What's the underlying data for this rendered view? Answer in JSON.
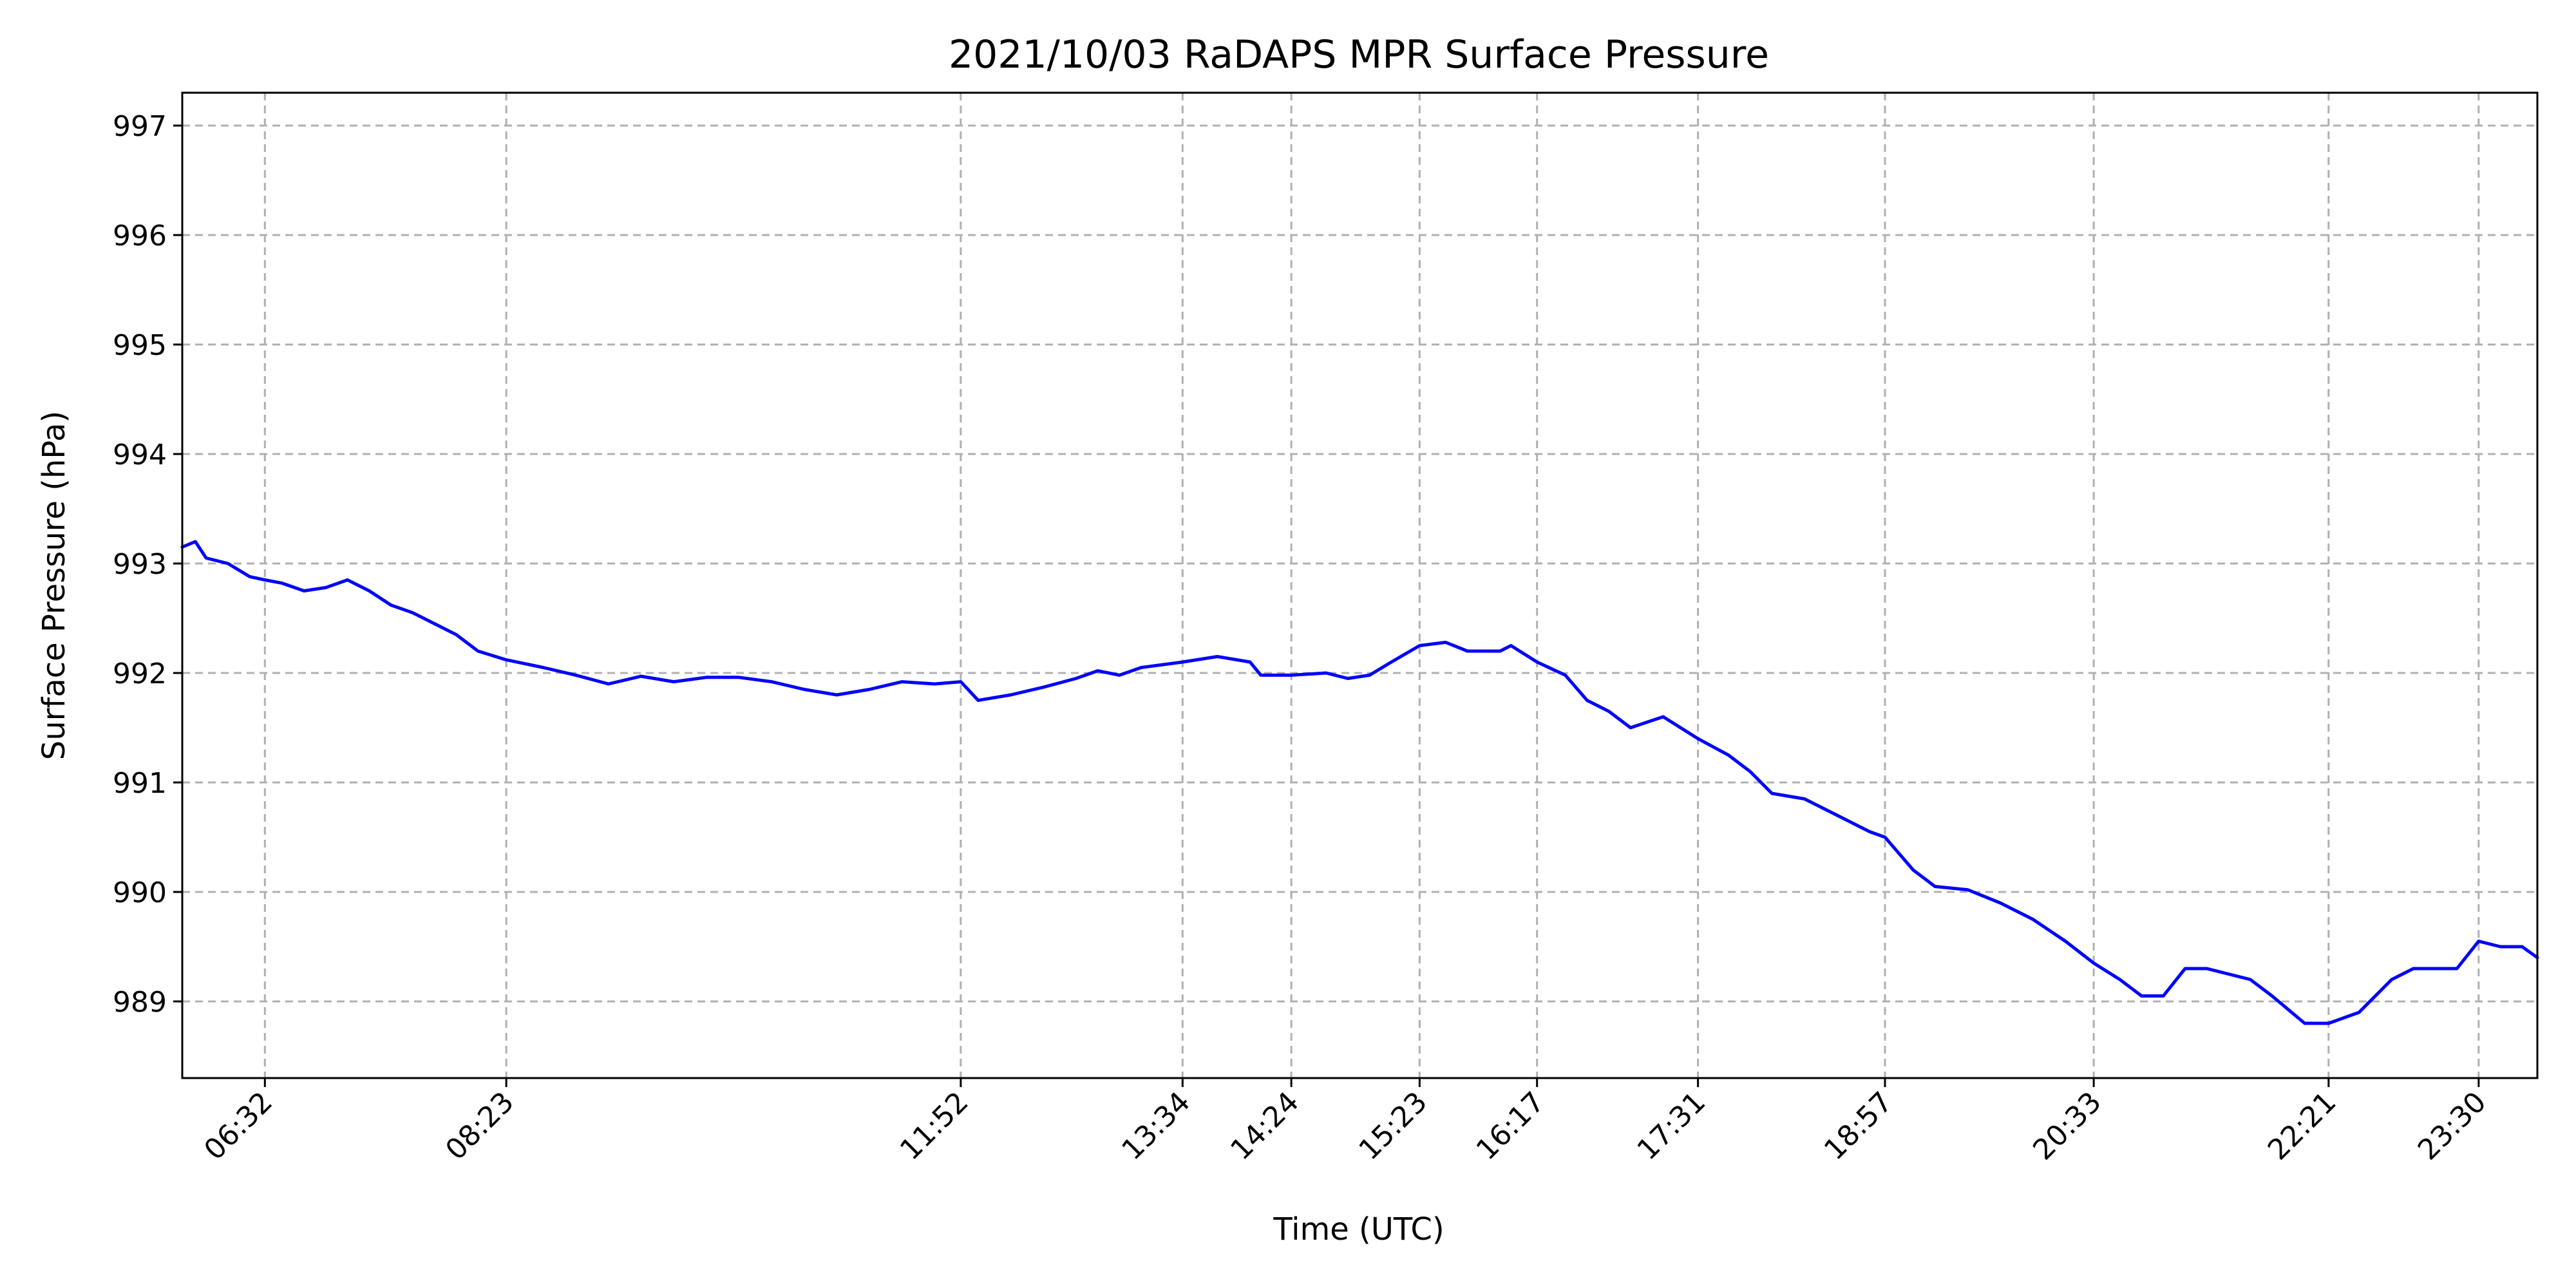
{
  "chart_data": {
    "type": "line",
    "title": "2021/10/03 RaDAPS MPR Surface Pressure",
    "xlabel": "Time (UTC)",
    "ylabel": "Surface Pressure (hPa)",
    "x_unit": "HH:MM UTC",
    "xlim": [
      "05:54",
      "23:57"
    ],
    "ylim": [
      988.3,
      997.3
    ],
    "x_ticks": [
      "06:32",
      "08:23",
      "11:52",
      "13:34",
      "14:24",
      "15:23",
      "16:17",
      "17:31",
      "18:57",
      "20:33",
      "22:21",
      "23:30"
    ],
    "y_ticks": [
      989,
      990,
      991,
      992,
      993,
      994,
      995,
      996,
      997
    ],
    "grid": true,
    "series": [
      {
        "color": "#0000ff",
        "points": [
          [
            "05:54",
            993.15
          ],
          [
            "06:00",
            993.2
          ],
          [
            "06:05",
            993.05
          ],
          [
            "06:15",
            993.0
          ],
          [
            "06:25",
            992.88
          ],
          [
            "06:32",
            992.85
          ],
          [
            "06:40",
            992.82
          ],
          [
            "06:50",
            992.75
          ],
          [
            "07:00",
            992.78
          ],
          [
            "07:10",
            992.85
          ],
          [
            "07:20",
            992.75
          ],
          [
            "07:30",
            992.62
          ],
          [
            "07:40",
            992.55
          ],
          [
            "07:50",
            992.45
          ],
          [
            "08:00",
            992.35
          ],
          [
            "08:10",
            992.2
          ],
          [
            "08:23",
            992.12
          ],
          [
            "08:40",
            992.05
          ],
          [
            "08:55",
            991.98
          ],
          [
            "09:10",
            991.9
          ],
          [
            "09:25",
            991.97
          ],
          [
            "09:40",
            991.92
          ],
          [
            "09:55",
            991.96
          ],
          [
            "10:10",
            991.96
          ],
          [
            "10:25",
            991.92
          ],
          [
            "10:40",
            991.85
          ],
          [
            "10:55",
            991.8
          ],
          [
            "11:10",
            991.85
          ],
          [
            "11:25",
            991.92
          ],
          [
            "11:40",
            991.9
          ],
          [
            "11:52",
            991.92
          ],
          [
            "12:00",
            991.75
          ],
          [
            "12:15",
            991.8
          ],
          [
            "12:30",
            991.87
          ],
          [
            "12:45",
            991.95
          ],
          [
            "12:55",
            992.02
          ],
          [
            "13:05",
            991.98
          ],
          [
            "13:15",
            992.05
          ],
          [
            "13:34",
            992.1
          ],
          [
            "13:50",
            992.15
          ],
          [
            "14:05",
            992.1
          ],
          [
            "14:10",
            991.98
          ],
          [
            "14:24",
            991.98
          ],
          [
            "14:40",
            992.0
          ],
          [
            "14:50",
            991.95
          ],
          [
            "15:00",
            991.98
          ],
          [
            "15:10",
            992.1
          ],
          [
            "15:23",
            992.25
          ],
          [
            "15:35",
            992.28
          ],
          [
            "15:45",
            992.2
          ],
          [
            "16:00",
            992.2
          ],
          [
            "16:05",
            992.25
          ],
          [
            "16:17",
            992.1
          ],
          [
            "16:30",
            991.98
          ],
          [
            "16:40",
            991.75
          ],
          [
            "16:50",
            991.65
          ],
          [
            "17:00",
            991.5
          ],
          [
            "17:15",
            991.6
          ],
          [
            "17:31",
            991.4
          ],
          [
            "17:45",
            991.25
          ],
          [
            "17:55",
            991.1
          ],
          [
            "18:05",
            990.9
          ],
          [
            "18:20",
            990.85
          ],
          [
            "18:35",
            990.7
          ],
          [
            "18:50",
            990.55
          ],
          [
            "18:57",
            990.5
          ],
          [
            "19:10",
            990.2
          ],
          [
            "19:20",
            990.05
          ],
          [
            "19:35",
            990.02
          ],
          [
            "19:50",
            989.9
          ],
          [
            "20:05",
            989.75
          ],
          [
            "20:20",
            989.55
          ],
          [
            "20:33",
            989.35
          ],
          [
            "20:45",
            989.2
          ],
          [
            "20:55",
            989.05
          ],
          [
            "21:05",
            989.05
          ],
          [
            "21:15",
            989.3
          ],
          [
            "21:25",
            989.3
          ],
          [
            "21:35",
            989.25
          ],
          [
            "21:45",
            989.2
          ],
          [
            "21:55",
            989.05
          ],
          [
            "22:10",
            988.8
          ],
          [
            "22:21",
            988.8
          ],
          [
            "22:35",
            988.9
          ],
          [
            "22:50",
            989.2
          ],
          [
            "23:00",
            989.3
          ],
          [
            "23:10",
            989.3
          ],
          [
            "23:20",
            989.3
          ],
          [
            "23:30",
            989.55
          ],
          [
            "23:40",
            989.5
          ],
          [
            "23:50",
            989.5
          ],
          [
            "23:57",
            989.4
          ]
        ]
      }
    ]
  }
}
